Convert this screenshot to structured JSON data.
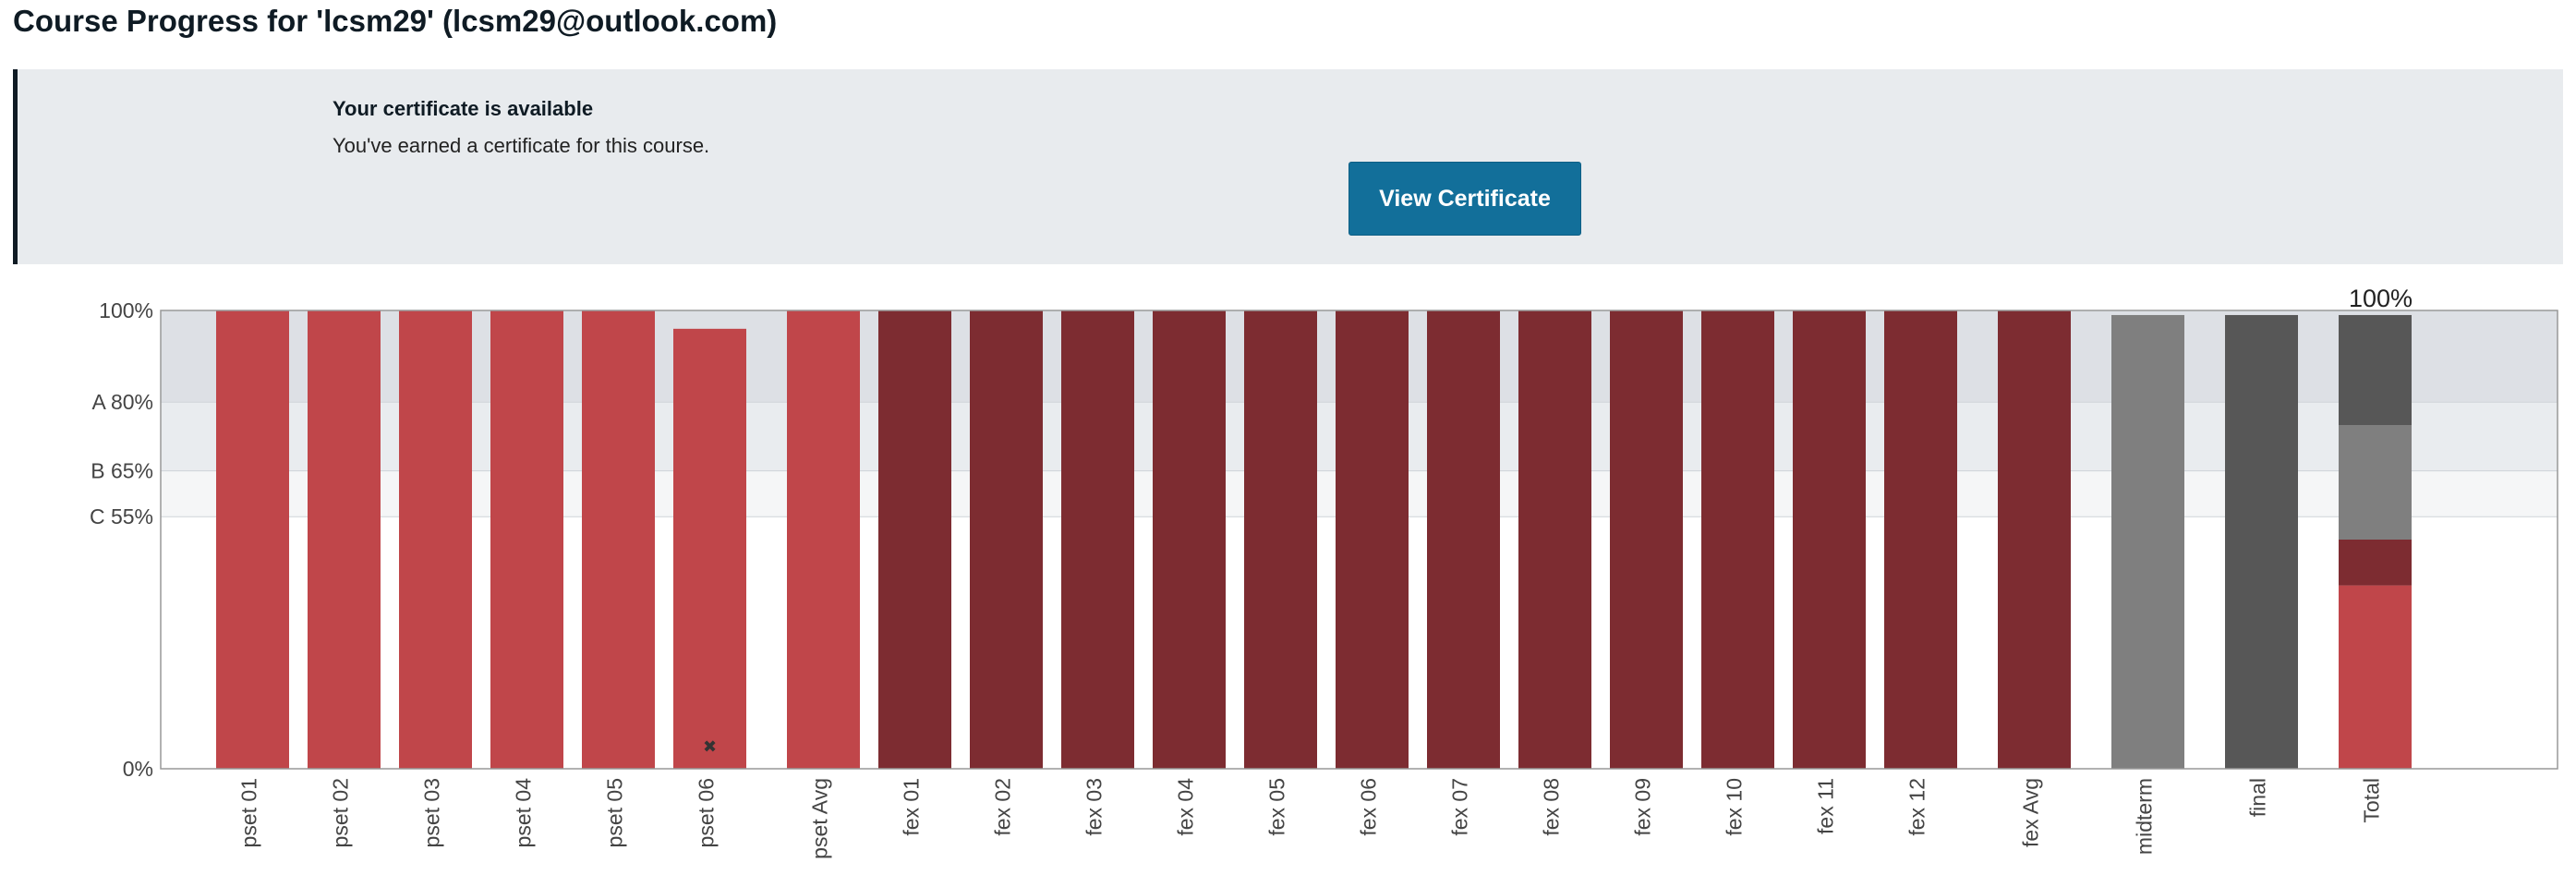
{
  "page": {
    "title": "Course Progress for 'lcsm29' (lcsm29@outlook.com)"
  },
  "certificate": {
    "title": "Your certificate is available",
    "message": "You've earned a certificate for this course.",
    "button_label": "View Certificate",
    "button_color": "#126f9a"
  },
  "chart_data": {
    "type": "bar",
    "ylim": [
      0,
      100
    ],
    "yticks": [
      {
        "value": 100,
        "label": "100%"
      },
      {
        "value": 80,
        "label": "A 80%"
      },
      {
        "value": 65,
        "label": "B 65%"
      },
      {
        "value": 55,
        "label": "C 55%"
      },
      {
        "value": 0,
        "label": "0%"
      }
    ],
    "grade_bands": [
      {
        "grade": "A",
        "from": 80,
        "to": 100,
        "color": "#dde0e5"
      },
      {
        "grade": "B",
        "from": 65,
        "to": 80,
        "color": "#e9ecef"
      },
      {
        "grade": "C",
        "from": 55,
        "to": 65,
        "color": "#f5f6f7"
      }
    ],
    "colors": {
      "pset": "#c0464a",
      "fex": "#7d2c31",
      "midterm": "#7f7f7f",
      "final": "#575757"
    },
    "bars": [
      {
        "label": "pset 01",
        "value": 100,
        "group": "pset"
      },
      {
        "label": "pset 02",
        "value": 100,
        "group": "pset"
      },
      {
        "label": "pset 03",
        "value": 100,
        "group": "pset"
      },
      {
        "label": "pset 04",
        "value": 100,
        "group": "pset"
      },
      {
        "label": "pset 05",
        "value": 100,
        "group": "pset"
      },
      {
        "label": "pset 06",
        "value": 96,
        "group": "pset",
        "dropped": true
      },
      {
        "label": "pset Avg",
        "value": 100,
        "group": "pset",
        "gap_before": true
      },
      {
        "label": "fex 01",
        "value": 100,
        "group": "fex"
      },
      {
        "label": "fex 02",
        "value": 100,
        "group": "fex"
      },
      {
        "label": "fex 03",
        "value": 100,
        "group": "fex"
      },
      {
        "label": "fex 04",
        "value": 100,
        "group": "fex"
      },
      {
        "label": "fex 05",
        "value": 100,
        "group": "fex"
      },
      {
        "label": "fex 06",
        "value": 100,
        "group": "fex"
      },
      {
        "label": "fex 07",
        "value": 100,
        "group": "fex"
      },
      {
        "label": "fex 08",
        "value": 100,
        "group": "fex"
      },
      {
        "label": "fex 09",
        "value": 100,
        "group": "fex"
      },
      {
        "label": "fex 10",
        "value": 100,
        "group": "fex"
      },
      {
        "label": "fex 11",
        "value": 100,
        "group": "fex"
      },
      {
        "label": "fex 12",
        "value": 100,
        "group": "fex"
      },
      {
        "label": "fex Avg",
        "value": 100,
        "group": "fex",
        "gap_before": true
      },
      {
        "label": "midterm",
        "value": 99,
        "group": "midterm",
        "gap_before": true
      },
      {
        "label": "final",
        "value": 99,
        "group": "final",
        "gap_before": true
      }
    ],
    "total": {
      "label": "Total",
      "value_label": "100%",
      "segments": [
        {
          "group": "pset",
          "value": 40
        },
        {
          "group": "fex",
          "value": 10
        },
        {
          "group": "midterm",
          "value": 25
        },
        {
          "group": "final",
          "value": 24
        }
      ]
    }
  }
}
